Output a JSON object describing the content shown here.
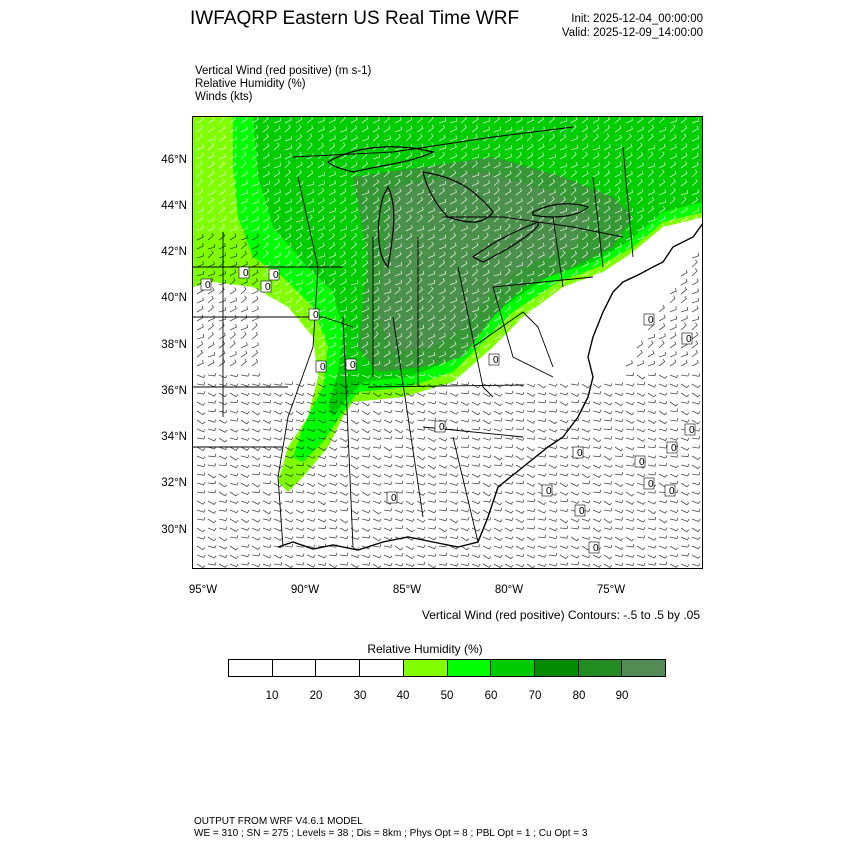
{
  "header": {
    "title": "IWFAQRP Eastern US Real Time WRF",
    "init": "Init: 2025-12-04_00:00:00",
    "valid": "Valid: 2025-12-09_14:00:00"
  },
  "fields": {
    "line1": "Vertical Wind (red positive)   (m s-1)",
    "line2": "Relative Humidity   (%)",
    "line3": "Winds   (kts)"
  },
  "map": {
    "lat_labels": [
      "46°N",
      "44°N",
      "42°N",
      "40°N",
      "38°N",
      "36°N",
      "34°N",
      "32°N",
      "30°N"
    ],
    "lon_labels": [
      "95°W",
      "90°W",
      "85°W",
      "80°W",
      "75°W"
    ],
    "contour_labels": [
      "0",
      "0",
      "0",
      "0",
      "0",
      "0",
      "0",
      "0",
      "0",
      "0",
      "0",
      "0",
      "0",
      "0",
      "0",
      "0",
      "0",
      "0",
      "0",
      "0",
      "0"
    ],
    "colors": {
      "land_line": "#000000",
      "moist_dark": "#3f7f3f",
      "wind_barb": "#ffffff"
    }
  },
  "contour_note": "Vertical Wind (red positive) Contours: -.5 to .5 by .05",
  "colorbar": {
    "title": "Relative Humidity   (%)",
    "labels": [
      "10",
      "20",
      "30",
      "40",
      "50",
      "60",
      "70",
      "80",
      "90"
    ],
    "colors": [
      "#ffffff",
      "#ffffff",
      "#ffffff",
      "#ffffff",
      "#7fff00",
      "#00ff00",
      "#00cd00",
      "#008b00",
      "#228b22",
      "#548b54"
    ]
  },
  "footer": {
    "line1": "OUTPUT FROM WRF V4.6.1 MODEL",
    "line2": "WE = 310 ; SN = 275 ; Levels = 38 ; Dis = 8km ; Phys Opt = 8 ; PBL Opt = 1 ; Cu Opt = 3"
  }
}
